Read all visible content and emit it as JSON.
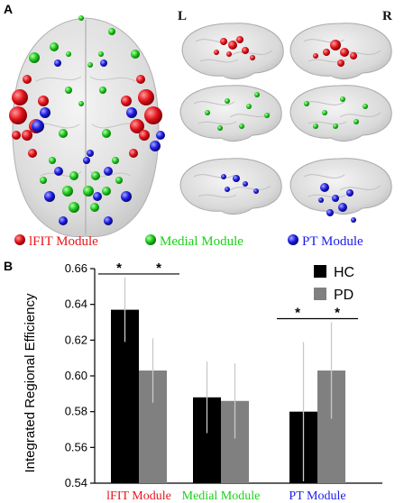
{
  "panel_a": {
    "letter": "A",
    "left_label": "L",
    "right_label": "R",
    "legend": [
      {
        "label": "lFIT Module",
        "color": "#e8141c"
      },
      {
        "label": "Medial Module",
        "color": "#19d219"
      },
      {
        "label": "PT Module",
        "color": "#1a1aee"
      }
    ]
  },
  "panel_b": {
    "letter": "B",
    "significance_marker": "*"
  },
  "chart_data": {
    "type": "bar",
    "ylabel": "Integrated Regional Efficiency",
    "ylim": [
      0.54,
      0.66
    ],
    "yticks": [
      0.54,
      0.56,
      0.58,
      0.6,
      0.62,
      0.64,
      0.66
    ],
    "ytick_labels": [
      "0.54",
      "0.56",
      "0.58",
      "0.60",
      "0.62",
      "0.64",
      "0.66"
    ],
    "categories": [
      "lFIT Module",
      "Medial Module",
      "PT Module"
    ],
    "category_colors": [
      "#e8141c",
      "#19d219",
      "#1a1aee"
    ],
    "series": [
      {
        "name": "HC",
        "color": "#000000",
        "values": [
          0.637,
          0.588,
          0.58
        ],
        "err": [
          0.018,
          0.02,
          0.039
        ]
      },
      {
        "name": "PD",
        "color": "#808080",
        "values": [
          0.603,
          0.586,
          0.603
        ],
        "err": [
          0.018,
          0.021,
          0.027
        ]
      }
    ],
    "significant_categories": [
      "lFIT Module",
      "PT Module"
    ],
    "legend_position": "top-right",
    "grid": false
  }
}
